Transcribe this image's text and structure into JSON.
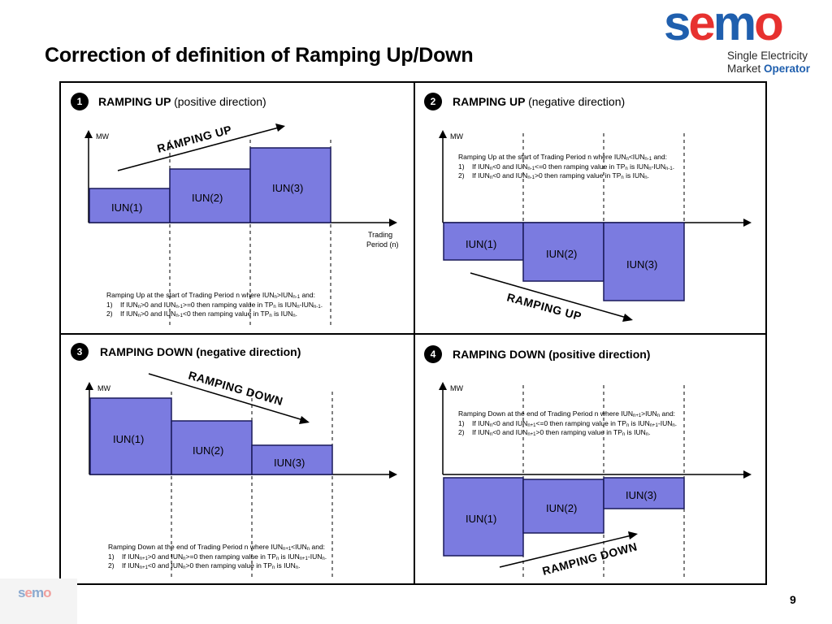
{
  "title": "Correction of definition of Ramping Up/Down",
  "logo": {
    "word": [
      "s",
      "e",
      "m",
      "o"
    ],
    "line1": "Single Electricity",
    "line2a": "Market ",
    "line2b": "Operator"
  },
  "footer_logo": {
    "word": [
      "s",
      "e",
      "m",
      "o"
    ]
  },
  "page_number": "9",
  "colors": {
    "bar_fill": "#7b7be0",
    "bar_stroke": "#1a1a5a",
    "logo_blue": "#1f5fae",
    "logo_red": "#e7312f"
  },
  "panels": [
    {
      "num": "1",
      "title": "RAMPING UP",
      "dir": "(positive direction)",
      "mw": "MW",
      "tp1": "Trading",
      "tp2": "Period (n)",
      "bars": [
        "IUN(1)",
        "IUN(2)",
        "IUN(3)"
      ],
      "ramp": "RAMPING UP",
      "note": [
        "Ramping Up at the start of Trading Period n where IUN<sub>n</sub>&gt;IUN<sub>n-1</sub> and:",
        "1)&nbsp;&nbsp;&nbsp;&nbsp;If IUN<sub>n</sub>&gt;0 and IUN<sub>n-1</sub>&gt;=0 then ramping value in TP<sub>n</sub> is IUN<sub>n</sub>-IUN<sub>n-1</sub>.",
        "2)&nbsp;&nbsp;&nbsp;&nbsp;If IUN<sub>n</sub>&gt;0 and IUN<sub>n-1</sub>&lt;0 then ramping value in TP<sub>n</sub> is IUN<sub>n</sub>."
      ]
    },
    {
      "num": "2",
      "title": "RAMPING UP",
      "dir": "(negative direction)",
      "mw": "MW",
      "bars": [
        "IUN(1)",
        "IUN(2)",
        "IUN(3)"
      ],
      "ramp": "RAMPING UP",
      "note": [
        "Ramping Up at the start of Trading Period n where IUN<sub>n</sub>&lt;IUN<sub>n-1</sub> and:",
        "1)&nbsp;&nbsp;&nbsp;&nbsp;If IUN<sub>n</sub>&lt;0 and IUN<sub>n-1</sub>&lt;=0 then ramping value in TP<sub>n</sub> is IUN<sub>n</sub>-IUN<sub>n-1</sub>.",
        "2)&nbsp;&nbsp;&nbsp;&nbsp;If IUN<sub>n</sub>&lt;0 and IUN<sub>n-1</sub>&gt;0 then ramping value in TP<sub>n</sub> is IUN<sub>n</sub>."
      ]
    },
    {
      "num": "3",
      "title": "RAMPING DOWN",
      "dir": "(negative direction)",
      "mw": "MW",
      "bars": [
        "IUN(1)",
        "IUN(2)",
        "IUN(3)"
      ],
      "ramp": "RAMPING DOWN",
      "note": [
        "Ramping Down at the end of Trading Period n where IUN<sub>n+1</sub>&lt;IUN<sub>n</sub> and:",
        "1)&nbsp;&nbsp;&nbsp;&nbsp;If IUN<sub>n+1</sub>&gt;0 and IUN<sub>n</sub>&gt;=0 then ramping value in TP<sub>n</sub> is IUN<sub>n+1</sub>-IUN<sub>n</sub>.",
        "2)&nbsp;&nbsp;&nbsp;&nbsp;If IUN<sub>n+1</sub>&lt;0 and IUN<sub>n</sub>&gt;0 then ramping value in TP<sub>n</sub> is IUN<sub>n</sub>."
      ]
    },
    {
      "num": "4",
      "title": "RAMPING DOWN",
      "dir": "(positive direction)",
      "mw": "MW",
      "bars": [
        "IUN(1)",
        "IUN(2)",
        "IUN(3)"
      ],
      "ramp": "RAMPING DOWN",
      "note": [
        "Ramping Down at the end of Trading Period n where IUN<sub>n+1</sub>&gt;IUN<sub>n</sub> and:",
        "1)&nbsp;&nbsp;&nbsp;&nbsp;If IUN<sub>n</sub>&lt;0 and IUN<sub>n+1</sub>&lt;=0 then ramping value in TP<sub>n</sub> is IUN<sub>n+1</sub>-IUN<sub>n</sub>.",
        "2)&nbsp;&nbsp;&nbsp;&nbsp;If IUN<sub>n</sub>&lt;0 and IUN<sub>n+1</sub>&gt;0 then ramping value in TP<sub>n</sub> is IUN<sub>n</sub>."
      ]
    }
  ]
}
